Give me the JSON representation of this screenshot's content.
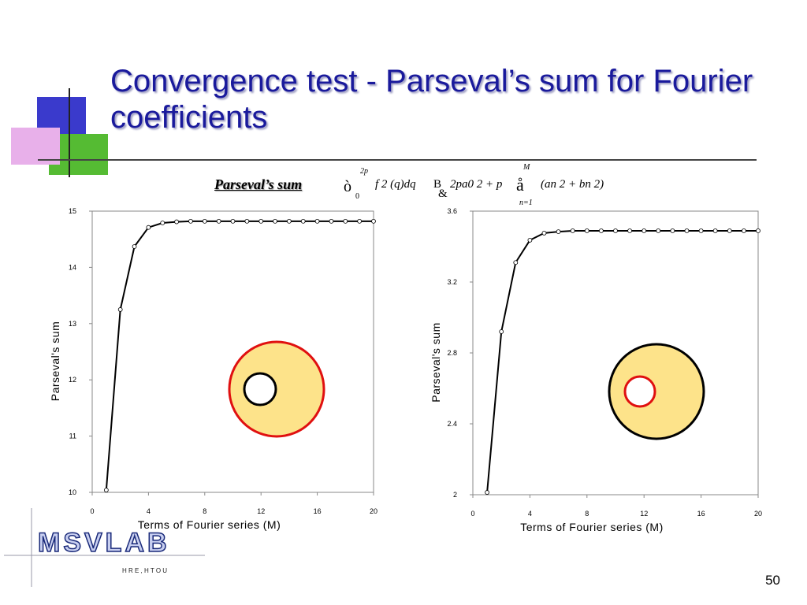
{
  "title": "Convergence test - Parseval’s sum for Fourier coefficients",
  "formula": {
    "label": "Parseval’s sum",
    "parts": [
      "ò",
      "2p",
      "0",
      "f 2 (q)dq",
      "B",
      "&",
      "2pa0 2 + p",
      "M",
      "å",
      "n=1",
      "(an 2 + bn 2)"
    ]
  },
  "logo": {
    "name": "MSVLAB",
    "subtitle": "H R E , H T O U"
  },
  "page_number": "50",
  "chart_data": [
    {
      "type": "line",
      "xlabel": "Terms of Fourier series (M)",
      "ylabel": "Parseval's sum",
      "color": "#000000",
      "marker": "hollow-circle",
      "x": [
        1,
        2,
        3,
        4,
        5,
        6,
        7,
        8,
        9,
        10,
        11,
        12,
        13,
        14,
        15,
        16,
        17,
        18,
        19,
        20
      ],
      "values": [
        10.04,
        13.25,
        14.37,
        14.71,
        14.79,
        14.81,
        14.82,
        14.82,
        14.82,
        14.82,
        14.82,
        14.82,
        14.82,
        14.82,
        14.82,
        14.82,
        14.82,
        14.82,
        14.82,
        14.82
      ],
      "xlim": [
        0,
        20
      ],
      "xticks": [
        0,
        4,
        8,
        12,
        16,
        20
      ],
      "ylim": [
        10,
        15
      ],
      "yticks": [
        10,
        11,
        12,
        13,
        14,
        15
      ]
    },
    {
      "type": "line",
      "xlabel": "Terms of Fourier series (M)",
      "ylabel": "Parseval's sum",
      "color": "#000000",
      "marker": "hollow-circle",
      "x": [
        1,
        2,
        3,
        4,
        5,
        6,
        7,
        8,
        9,
        10,
        11,
        12,
        13,
        14,
        15,
        16,
        17,
        18,
        19,
        20
      ],
      "values": [
        2.013,
        2.92,
        3.31,
        3.436,
        3.476,
        3.484,
        3.489,
        3.489,
        3.489,
        3.489,
        3.489,
        3.489,
        3.489,
        3.489,
        3.489,
        3.489,
        3.489,
        3.489,
        3.489,
        3.489
      ],
      "xlim": [
        0,
        20
      ],
      "xticks": [
        0,
        4,
        8,
        12,
        16,
        20
      ],
      "ylim": [
        2,
        3.6
      ],
      "yticks": [
        2,
        2.4,
        2.8,
        3.2,
        3.6
      ]
    }
  ]
}
